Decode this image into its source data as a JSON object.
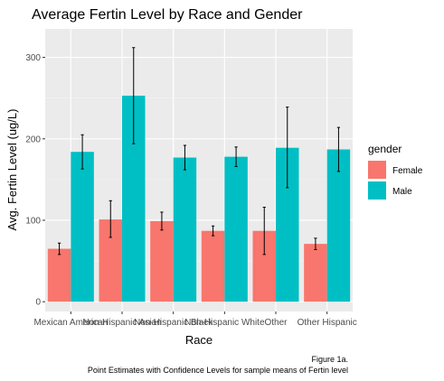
{
  "chart_data": {
    "type": "bar",
    "title": "Average Fertin Level by Race and Gender",
    "xlabel": "Race",
    "ylabel": "Avg. Fertin Level (ug/L)",
    "categories": [
      "Mexican American",
      "Non-Hispanic Asian",
      "Non-Hispanic Black",
      "Non-Hispanic White",
      "Other",
      "Other Hispanic"
    ],
    "series": [
      {
        "name": "Female",
        "color": "#F8766D",
        "values": [
          65,
          101,
          99,
          87,
          87,
          71
        ],
        "ci_low": [
          58,
          79,
          88,
          81,
          58,
          64
        ],
        "ci_high": [
          72,
          124,
          110,
          93,
          116,
          78
        ]
      },
      {
        "name": "Male",
        "color": "#00BFC4",
        "values": [
          184,
          253,
          177,
          178,
          189,
          187
        ],
        "ci_low": [
          163,
          194,
          162,
          166,
          140,
          160
        ],
        "ci_high": [
          205,
          312,
          192,
          190,
          239,
          214
        ]
      }
    ],
    "ylim": [
      -12,
      335
    ],
    "yticks": [
      0,
      100,
      200,
      300
    ],
    "grid": true,
    "legend_title": "gender",
    "legend_position": "right",
    "caption": [
      "Figure 1a.",
      "Point Estimates with Confidence Levels for sample means of Fertin level"
    ]
  }
}
